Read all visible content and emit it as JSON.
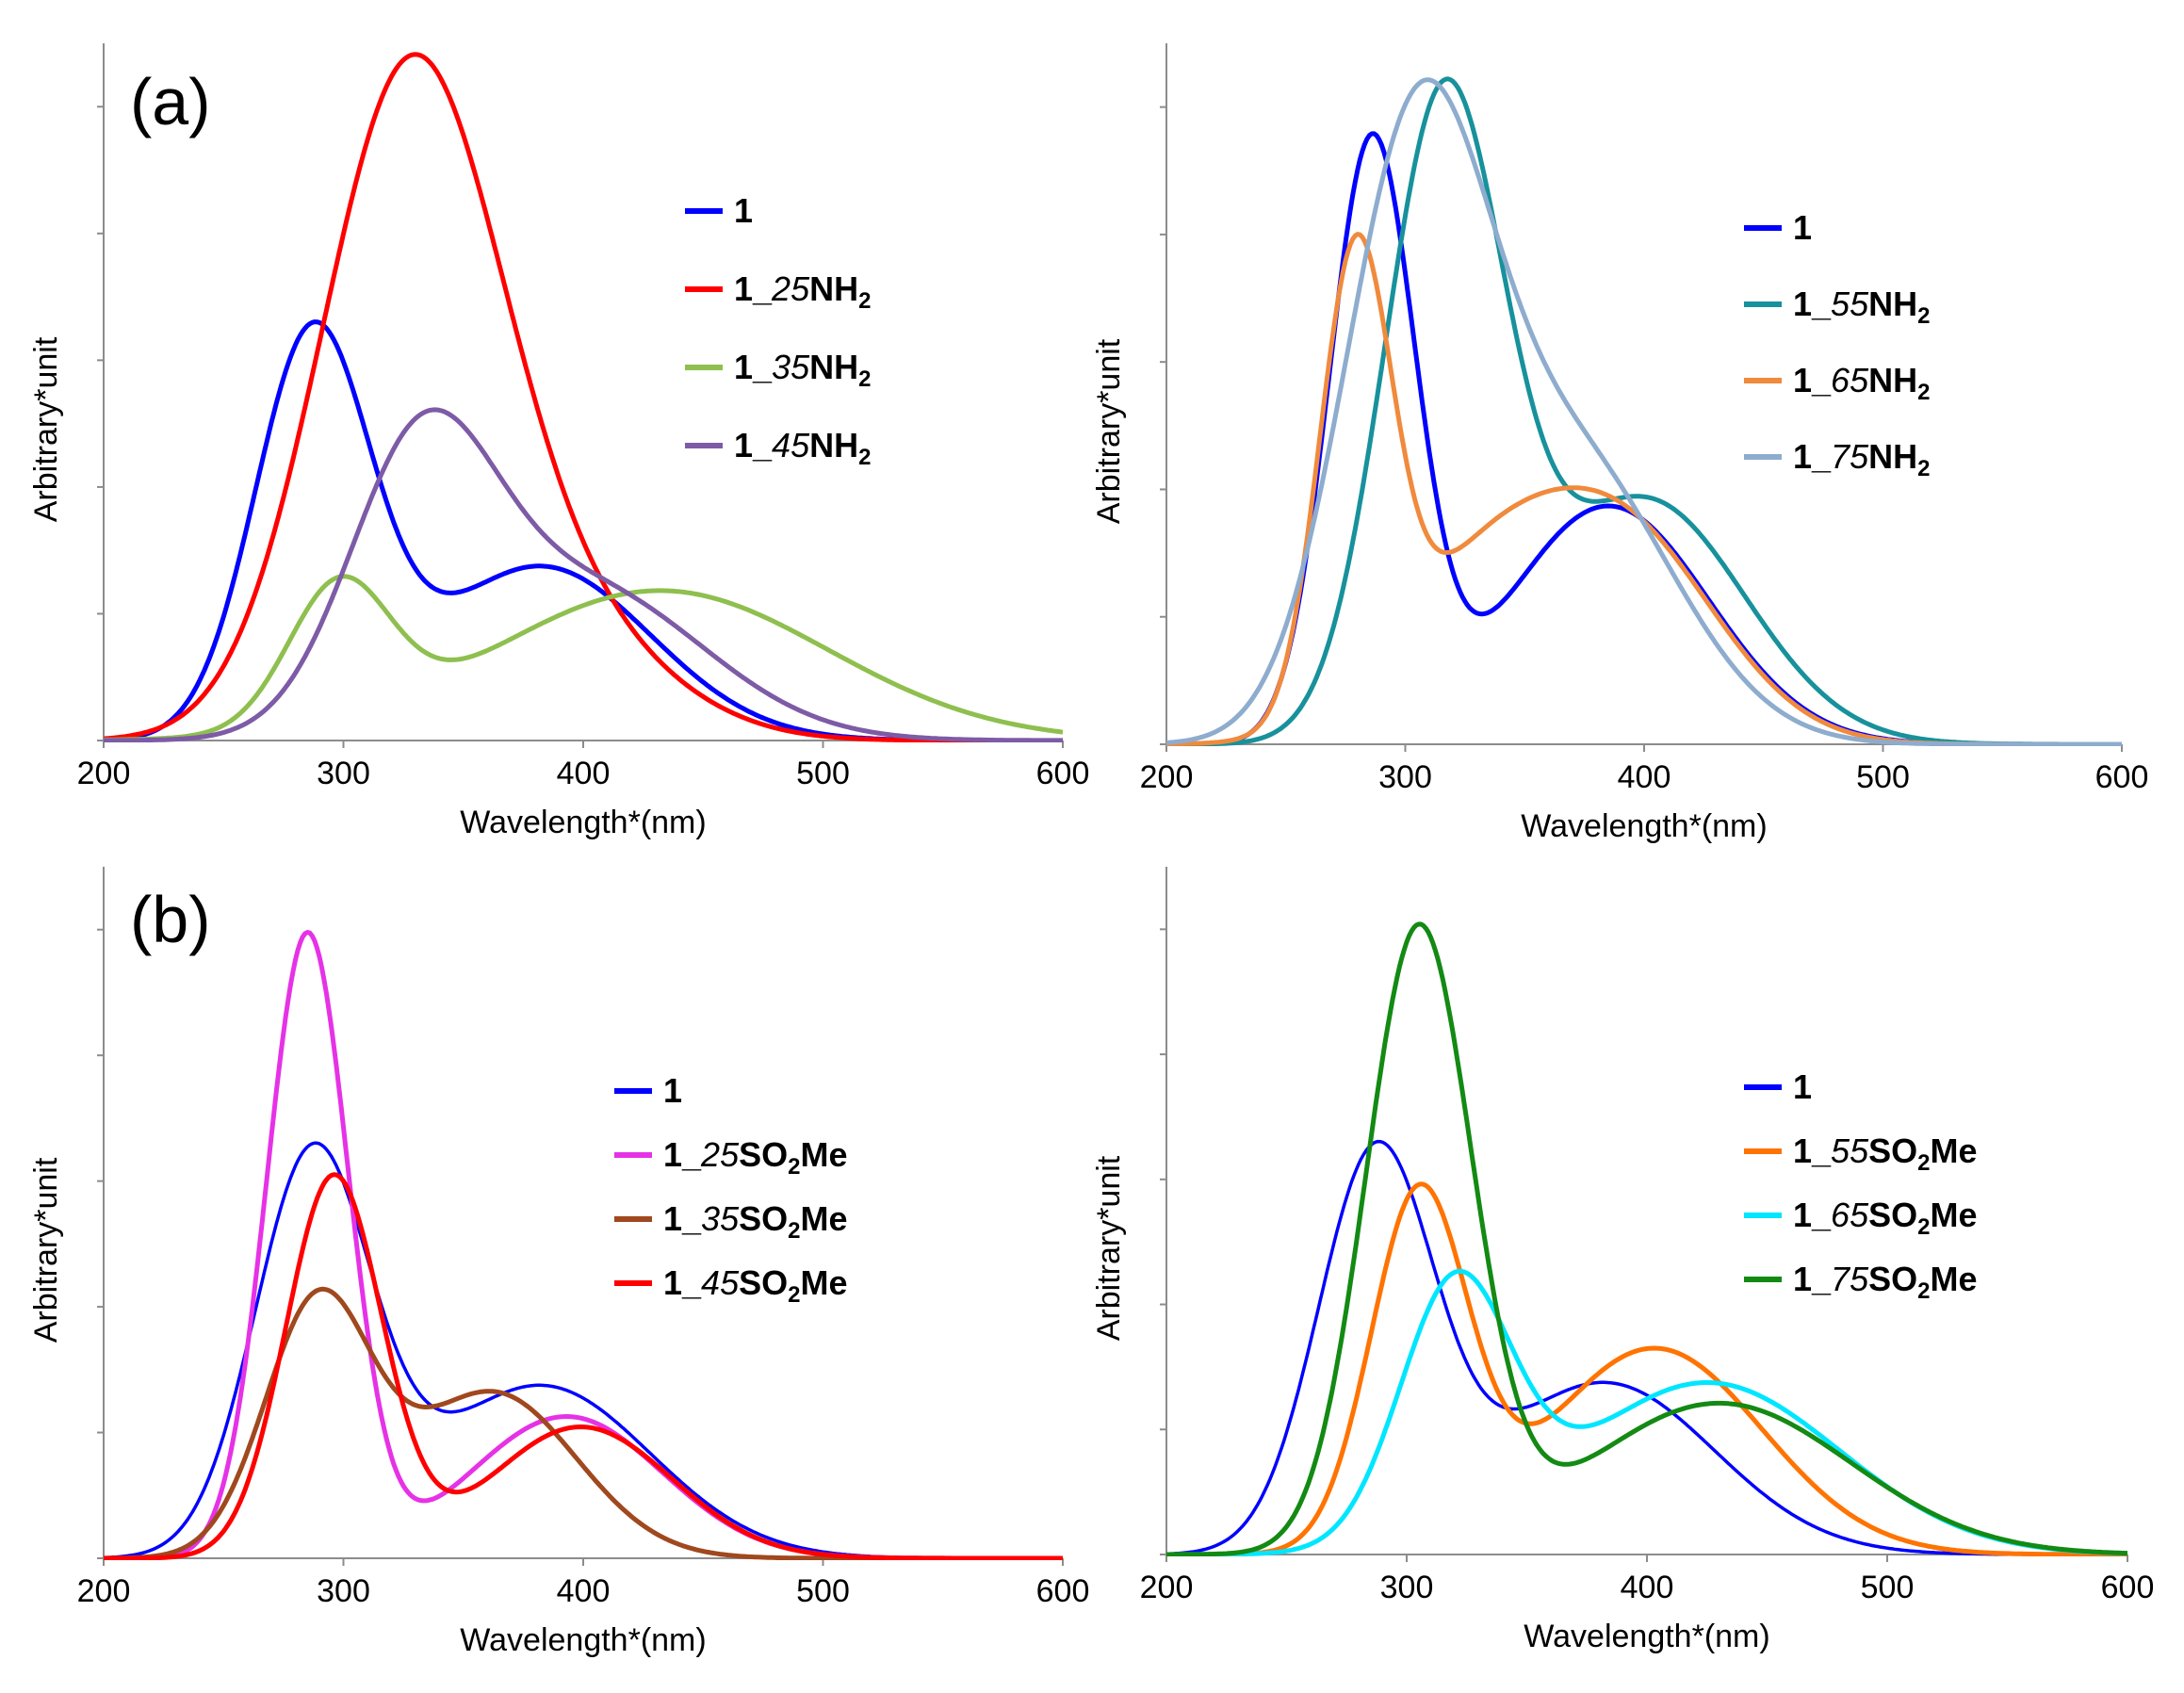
{
  "chart_data": [
    {
      "type": "line",
      "panel_label": "(a)",
      "xlabel": "Wavelength*(nm)",
      "ylabel": "Arbitrary*unit",
      "xlim": [
        200,
        600
      ],
      "ylim": [
        0,
        1
      ],
      "x_ticks": [
        "200",
        "300",
        "400",
        "500",
        "600"
      ],
      "legend_position": "right",
      "series": [
        {
          "name": "1",
          "color": "#0000ff",
          "bands": [
            {
              "center": 287,
              "height": 0.57,
              "width": 24
            },
            {
              "center": 382,
              "height": 0.25,
              "width": 46
            }
          ]
        },
        {
          "name": "1_25NH2",
          "prefix": "1_",
          "italic": "25",
          "suffix": "NH",
          "sub": "2",
          "color": "#ff0000",
          "bands": [
            {
              "center": 327,
              "height": 0.92,
              "width": 37
            },
            {
              "center": 388,
              "height": 0.16,
              "width": 44
            }
          ]
        },
        {
          "name": "1_35NH2",
          "prefix": "1_",
          "italic": "35",
          "suffix": "NH",
          "sub": "2",
          "color": "#8ebf4f",
          "bands": [
            {
              "center": 298,
              "height": 0.2,
              "width": 21
            },
            {
              "center": 432,
              "height": 0.215,
              "width": 70
            }
          ]
        },
        {
          "name": "1_45NH2",
          "prefix": "1_",
          "italic": "45",
          "suffix": "NH",
          "sub": "2",
          "color": "#7d5ba6",
          "bands": [
            {
              "center": 332,
              "height": 0.38,
              "width": 30
            },
            {
              "center": 400,
              "height": 0.22,
              "width": 50
            }
          ]
        }
      ]
    },
    {
      "type": "line",
      "panel_label": "",
      "xlabel": "Wavelength*(nm)",
      "ylabel": "Arbitrary*unit",
      "xlim": [
        200,
        600
      ],
      "ylim": [
        0,
        1
      ],
      "x_ticks": [
        "200",
        "300",
        "400",
        "500",
        "600"
      ],
      "legend_position": "right",
      "series": [
        {
          "name": "1",
          "color": "#0000ff",
          "bands": [
            {
              "center": 286,
              "height": 0.85,
              "width": 18
            },
            {
              "center": 385,
              "height": 0.34,
              "width": 42
            }
          ]
        },
        {
          "name": "1_55NH2",
          "prefix": "1_",
          "italic": "55",
          "suffix": "NH",
          "sub": "2",
          "color": "#17919c",
          "bands": [
            {
              "center": 316,
              "height": 0.9,
              "width": 25
            },
            {
              "center": 400,
              "height": 0.35,
              "width": 42
            }
          ]
        },
        {
          "name": "1_65NH2",
          "prefix": "1_",
          "italic": "65",
          "suffix": "NH",
          "sub": "2",
          "color": "#f08a3c",
          "bands": [
            {
              "center": 279,
              "height": 0.64,
              "width": 15
            },
            {
              "center": 328,
              "height": 0.2,
              "width": 36
            },
            {
              "center": 390,
              "height": 0.3,
              "width": 40
            }
          ]
        },
        {
          "name": "1_75NH2",
          "prefix": "1_",
          "italic": "75",
          "suffix": "NH",
          "sub": "2",
          "color": "#8eacce",
          "bands": [
            {
              "center": 304,
              "height": 0.82,
              "width": 30
            },
            {
              "center": 370,
              "height": 0.4,
              "width": 42
            }
          ]
        }
      ]
    },
    {
      "type": "line",
      "panel_label": "(b)",
      "xlabel": "Wavelength*(nm)",
      "ylabel": "Arbitrary*unit",
      "xlim": [
        200,
        600
      ],
      "ylim": [
        0,
        1
      ],
      "x_ticks": [
        "200",
        "300",
        "400",
        "500",
        "600"
      ],
      "legend_position": "right",
      "series": [
        {
          "name": "1",
          "color": "#0000ff",
          "bands": [
            {
              "center": 287,
              "height": 0.57,
              "width": 24
            },
            {
              "center": 382,
              "height": 0.25,
              "width": 46
            }
          ]
        },
        {
          "name": "1_25SO2Me",
          "prefix": "1_",
          "italic": "25",
          "suffix": "SO",
          "sub": "2",
          "tail": "Me",
          "color": "#e632e6",
          "bands": [
            {
              "center": 285,
              "height": 0.9,
              "width": 17
            },
            {
              "center": 393,
              "height": 0.205,
              "width": 40
            }
          ]
        },
        {
          "name": "1_35SO2Me",
          "prefix": "1_",
          "italic": "35",
          "suffix": "SO",
          "sub": "2",
          "tail": "Me",
          "color": "#a0481e",
          "bands": [
            {
              "center": 289,
              "height": 0.36,
              "width": 22
            },
            {
              "center": 362,
              "height": 0.24,
              "width": 35
            }
          ]
        },
        {
          "name": "1_45SO2Me",
          "prefix": "1_",
          "italic": "45",
          "suffix": "SO",
          "sub": "2",
          "tail": "Me",
          "color": "#ff0000",
          "bands": [
            {
              "center": 296,
              "height": 0.55,
              "width": 20
            },
            {
              "center": 399,
              "height": 0.19,
              "width": 38
            }
          ]
        }
      ]
    },
    {
      "type": "line",
      "panel_label": "",
      "xlabel": "Wavelength*(nm)",
      "ylabel": "Arbitrary*unit",
      "xlim": [
        200,
        600
      ],
      "ylim": [
        0,
        1
      ],
      "x_ticks": [
        "200",
        "300",
        "400",
        "500",
        "600"
      ],
      "legend_position": "right",
      "series": [
        {
          "name": "1",
          "color": "#0000ff",
          "bands": [
            {
              "center": 287,
              "height": 0.57,
              "width": 24
            },
            {
              "center": 382,
              "height": 0.25,
              "width": 46
            }
          ]
        },
        {
          "name": "1_55SO2Me",
          "prefix": "1_",
          "italic": "55",
          "suffix": "SO",
          "sub": "2",
          "tail": "Me",
          "color": "#ff7300",
          "bands": [
            {
              "center": 305,
              "height": 0.51,
              "width": 20
            },
            {
              "center": 403,
              "height": 0.3,
              "width": 45
            }
          ]
        },
        {
          "name": "1_65SO2Me",
          "prefix": "1_",
          "italic": "65",
          "suffix": "SO",
          "sub": "2",
          "tail": "Me",
          "color": "#00e6ff",
          "bands": [
            {
              "center": 320,
              "height": 0.37,
              "width": 23
            },
            {
              "center": 425,
              "height": 0.25,
              "width": 55
            }
          ]
        },
        {
          "name": "1_75SO2Me",
          "prefix": "1_",
          "italic": "75",
          "suffix": "SO",
          "sub": "2",
          "tail": "Me",
          "color": "#138a13",
          "bands": [
            {
              "center": 305,
              "height": 0.9,
              "width": 22
            },
            {
              "center": 430,
              "height": 0.22,
              "width": 55
            }
          ]
        }
      ]
    }
  ]
}
